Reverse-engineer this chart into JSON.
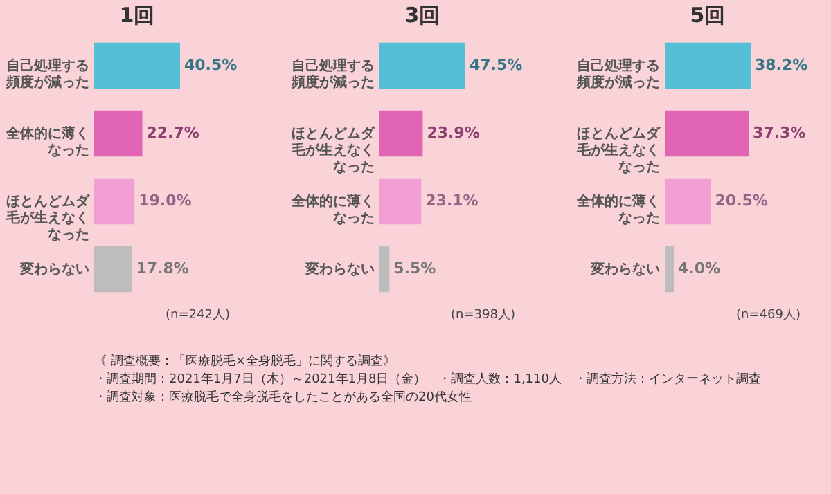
{
  "chart_data": [
    {
      "type": "bar",
      "orientation": "horizontal",
      "title": "1回",
      "categories": [
        "自己処理する頻度が減った",
        "全体的に薄くなった",
        "ほとんどムダ毛が生えなくなった",
        "変わらない"
      ],
      "values": [
        40.5,
        22.7,
        19.0,
        17.8
      ],
      "value_labels": [
        "40.5%",
        "22.7%",
        "19.0%",
        "17.8%"
      ],
      "colors": [
        "#55bfd6",
        "#e264b4",
        "#f19fd3",
        "#bdbdbd"
      ],
      "annotations": [
        "(n=242人)"
      ]
    },
    {
      "type": "bar",
      "orientation": "horizontal",
      "title": "3回",
      "categories": [
        "自己処理する頻度が減った",
        "ほとんどムダ毛が生えなくなった",
        "全体的に薄くなった",
        "変わらない"
      ],
      "values": [
        47.5,
        23.9,
        23.1,
        5.5
      ],
      "value_labels": [
        "47.5%",
        "23.9%",
        "23.1%",
        "5.5%"
      ],
      "colors": [
        "#55bfd6",
        "#e264b4",
        "#f19fd3",
        "#bdbdbd"
      ],
      "annotations": [
        "(n=398人)"
      ]
    },
    {
      "type": "bar",
      "orientation": "horizontal",
      "title": "5回",
      "categories": [
        "自己処理する頻度が減った",
        "ほとんどムダ毛が生えなくなった",
        "全体的に薄くなった",
        "変わらない"
      ],
      "values": [
        38.2,
        37.3,
        20.5,
        4.0
      ],
      "value_labels": [
        "38.2%",
        "37.3%",
        "20.5%",
        "4.0%"
      ],
      "colors": [
        "#55bfd6",
        "#e264b4",
        "#f19fd3",
        "#bdbdbd"
      ],
      "annotations": [
        "(n=469人)"
      ]
    },
    {
      "type": "other",
      "annotations": [
        "《 調査概要：「医療脱毛×全身脱毛」に関する調査》",
        "・調査期間：2021年1月7日（木）～2021年1月8日（金）　・調査人数：1,110人　・調査方法：インターネット調査",
        "・調査対象：医療脱毛で全身脱毛をしたことがある全国の20代女性"
      ]
    }
  ]
}
